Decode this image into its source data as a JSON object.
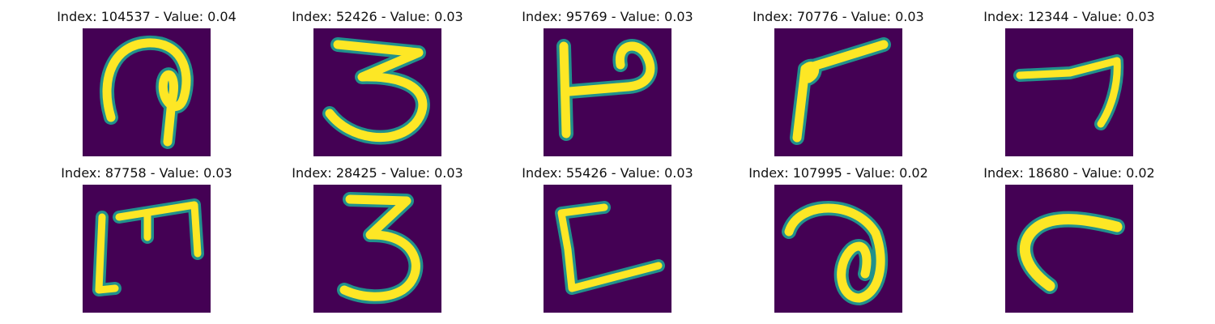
{
  "colors": {
    "background": "#440154",
    "stroke_core": "#fde725",
    "stroke_edge": "#21918c"
  },
  "panels": [
    {
      "title": "Index: 104537 - Value: 0.04",
      "glyph": "scribble-hook"
    },
    {
      "title": "Index: 52426 - Value: 0.03",
      "glyph": "digit-3-wide"
    },
    {
      "title": "Index: 95769 - Value: 0.03",
      "glyph": "vertical-with-loop"
    },
    {
      "title": "Index: 70776 - Value: 0.03",
      "glyph": "angled-stroke"
    },
    {
      "title": "Index: 12344 - Value: 0.03",
      "glyph": "digit-7-like"
    },
    {
      "title": "Index: 87758 - Value: 0.03",
      "glyph": "m-like"
    },
    {
      "title": "Index: 28425 - Value: 0.03",
      "glyph": "digit-3"
    },
    {
      "title": "Index: 55426 - Value: 0.03",
      "glyph": "l-like"
    },
    {
      "title": "Index: 107995 - Value: 0.02",
      "glyph": "loop-like-a"
    },
    {
      "title": "Index: 18680 - Value: 0.02",
      "glyph": "curve-r"
    }
  ]
}
